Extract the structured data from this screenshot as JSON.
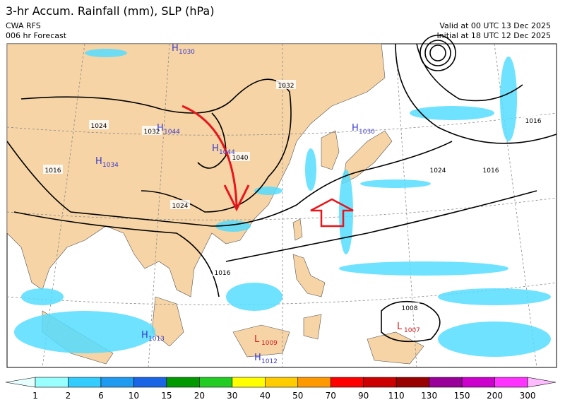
{
  "header": {
    "title": "3-hr Accum. Rainfall (mm), SLP (hPa)",
    "source": "CWA RFS",
    "forecast": "006 hr Forecast",
    "valid": "Valid at 00 UTC 13 Dec 2025",
    "initial": "Initial at 18 UTC 12 Dec 2025"
  },
  "map": {
    "isobar_labels": [
      "1032",
      "1024",
      "1016",
      "1032",
      "1040",
      "1024",
      "1016",
      "1024",
      "1016",
      "1016",
      "1008"
    ],
    "pressure_centers": [
      {
        "symbol": "H",
        "value": "1030"
      },
      {
        "symbol": "H",
        "value": "1044"
      },
      {
        "symbol": "H",
        "value": "1044"
      },
      {
        "symbol": "H",
        "value": "1034"
      },
      {
        "symbol": "H",
        "value": "1030"
      },
      {
        "symbol": "L",
        "value": "1007"
      },
      {
        "symbol": "L",
        "value": "1009"
      },
      {
        "symbol": "H",
        "value": "1012"
      },
      {
        "symbol": "H",
        "value": "1013"
      }
    ]
  },
  "legend": {
    "ticks": [
      1,
      2,
      6,
      10,
      15,
      20,
      30,
      40,
      50,
      70,
      90,
      110,
      130,
      150,
      200,
      300
    ],
    "colors": [
      "#e6ffff",
      "#99ffff",
      "#33ccff",
      "#1e9bf0",
      "#1a64e6",
      "#009900",
      "#22cc22",
      "#ffff00",
      "#ffcc00",
      "#ff9900",
      "#ff0000",
      "#cc0000",
      "#990000",
      "#990099",
      "#cc00cc",
      "#ff33ff",
      "#ffbbff"
    ]
  }
}
